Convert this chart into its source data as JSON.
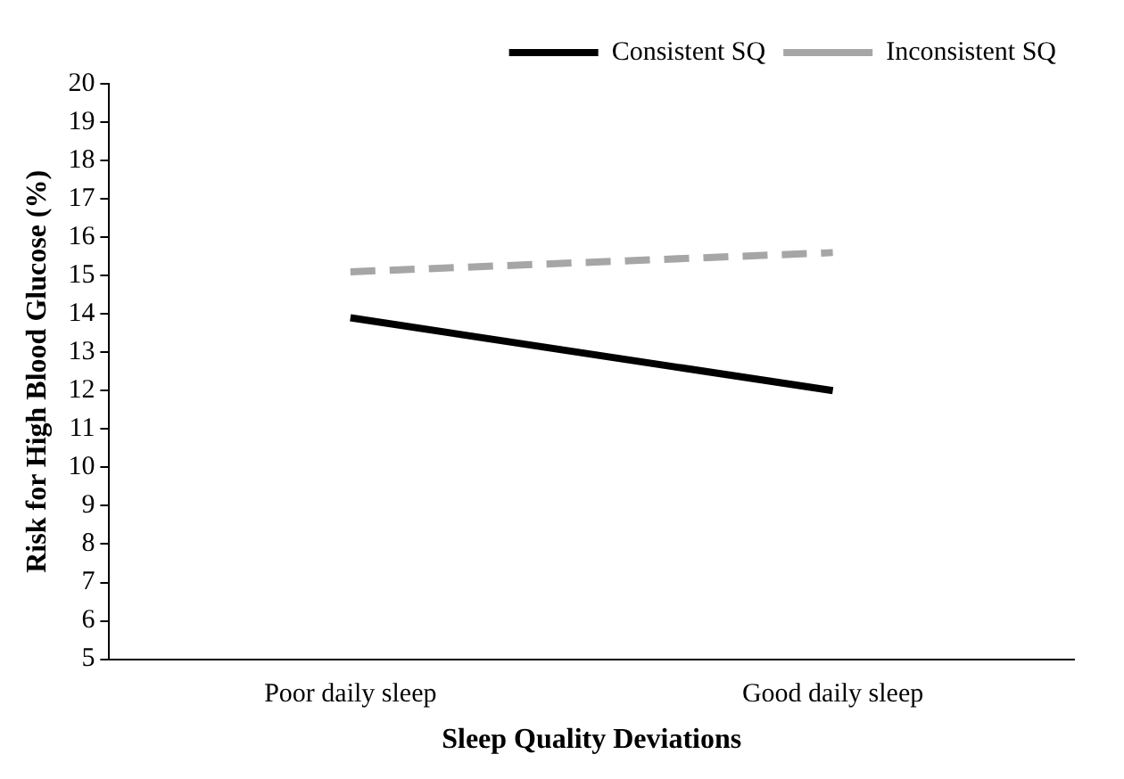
{
  "chart_data": {
    "type": "line",
    "xlabel": "Sleep Quality Deviations",
    "ylabel": "Risk for High Blood Glucose (%)",
    "categories": [
      "Poor daily sleep",
      "Good daily sleep"
    ],
    "series": [
      {
        "name": "Consistent SQ",
        "color": "#000000",
        "values": [
          13.9,
          12.0
        ],
        "line_style": "solid"
      },
      {
        "name": "Inconsistent SQ",
        "color": "#a6a6a6",
        "values": [
          15.1,
          15.6
        ],
        "line_style": "dashed"
      }
    ],
    "ylim": [
      5,
      20
    ],
    "yticks": [
      5,
      6,
      7,
      8,
      9,
      10,
      11,
      12,
      13,
      14,
      15,
      16,
      17,
      18,
      19,
      20
    ],
    "grid": false,
    "legend": "top right",
    "marker": "none"
  }
}
